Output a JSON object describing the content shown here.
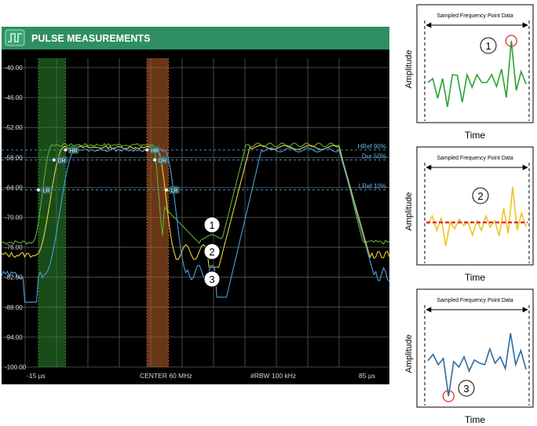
{
  "window": {
    "title": "PULSE MEASUREMENTS",
    "title_icon": "pulse-waveform-icon",
    "header_color": "#2f8f63"
  },
  "plot": {
    "y_min": -100,
    "y_max": -40,
    "y_step": 6,
    "y_ticks": [
      "-40.00",
      "-46.00",
      "-52.00",
      "-58.00",
      "-64.00",
      "-70.00",
      "-76.00",
      "-82.00",
      "-88.00",
      "-94.00",
      "-100.00"
    ],
    "x_labels": {
      "start": "-15 µs",
      "center": "CENTER 60 MHz",
      "rbw": "#RBW 100 kHz",
      "end": "85 µs"
    },
    "x_range_us": [
      -15,
      85
    ],
    "ref_lines": [
      {
        "label": "HRef 90%",
        "level": -56.5
      },
      {
        "label": "Dur 50%",
        "level": -58.5
      },
      {
        "label": "LRef 10%",
        "level": -64.5
      }
    ],
    "markers": {
      "hr": "HR",
      "dr": "DR",
      "lr": "LR"
    },
    "rise_band": {
      "x_start_us": -5.5,
      "x_end_us": 1.5,
      "color": "#2e8b2e"
    },
    "fall_band": {
      "x_start_us": 22.5,
      "x_end_us": 28,
      "color": "#c0652a"
    },
    "trace_colors": {
      "t1": "#5fae3a",
      "t2": "#e8d33a",
      "t3": "#4a9fd8"
    },
    "callouts": [
      "1",
      "2",
      "3"
    ]
  },
  "side_panels": [
    {
      "number": "1",
      "header": "Sampled Frequency Point Data",
      "ylabel": "Amplitude",
      "xlabel": "Time",
      "line_color": "#2aa233",
      "values": [
        0.47,
        0.52,
        0.27,
        0.52,
        0.16,
        0.57,
        0.56,
        0.22,
        0.57,
        0.41,
        0.57,
        0.47,
        0.47,
        0.57,
        0.42,
        0.64,
        0.28,
        1.0,
        0.37,
        0.61,
        0.45
      ],
      "highlight_index": 17,
      "show_mean": false
    },
    {
      "number": "2",
      "header": "Sampled Frequency Point Data",
      "ylabel": "Amplitude",
      "xlabel": "Time",
      "line_color": "#f0c419",
      "values": [
        0.48,
        0.58,
        0.4,
        0.56,
        0.2,
        0.5,
        0.42,
        0.54,
        0.46,
        0.5,
        0.34,
        0.52,
        0.4,
        0.58,
        0.44,
        0.52,
        0.33,
        0.68,
        0.36,
        0.95,
        0.4,
        0.62,
        0.44
      ],
      "highlight_index": -1,
      "show_mean": true,
      "mean_value": 0.5,
      "mean_color": "#e03030"
    },
    {
      "number": "3",
      "header": "Sampled Frequency Point Data",
      "ylabel": "Amplitude",
      "xlabel": "Time",
      "line_color": "#2e6aa1",
      "values": [
        0.55,
        0.63,
        0.5,
        0.58,
        0.1,
        0.54,
        0.47,
        0.6,
        0.42,
        0.56,
        0.52,
        0.5,
        0.7,
        0.52,
        0.6,
        0.45,
        0.9,
        0.5,
        0.68,
        0.44
      ],
      "highlight_index": 4,
      "show_mean": false
    }
  ]
}
